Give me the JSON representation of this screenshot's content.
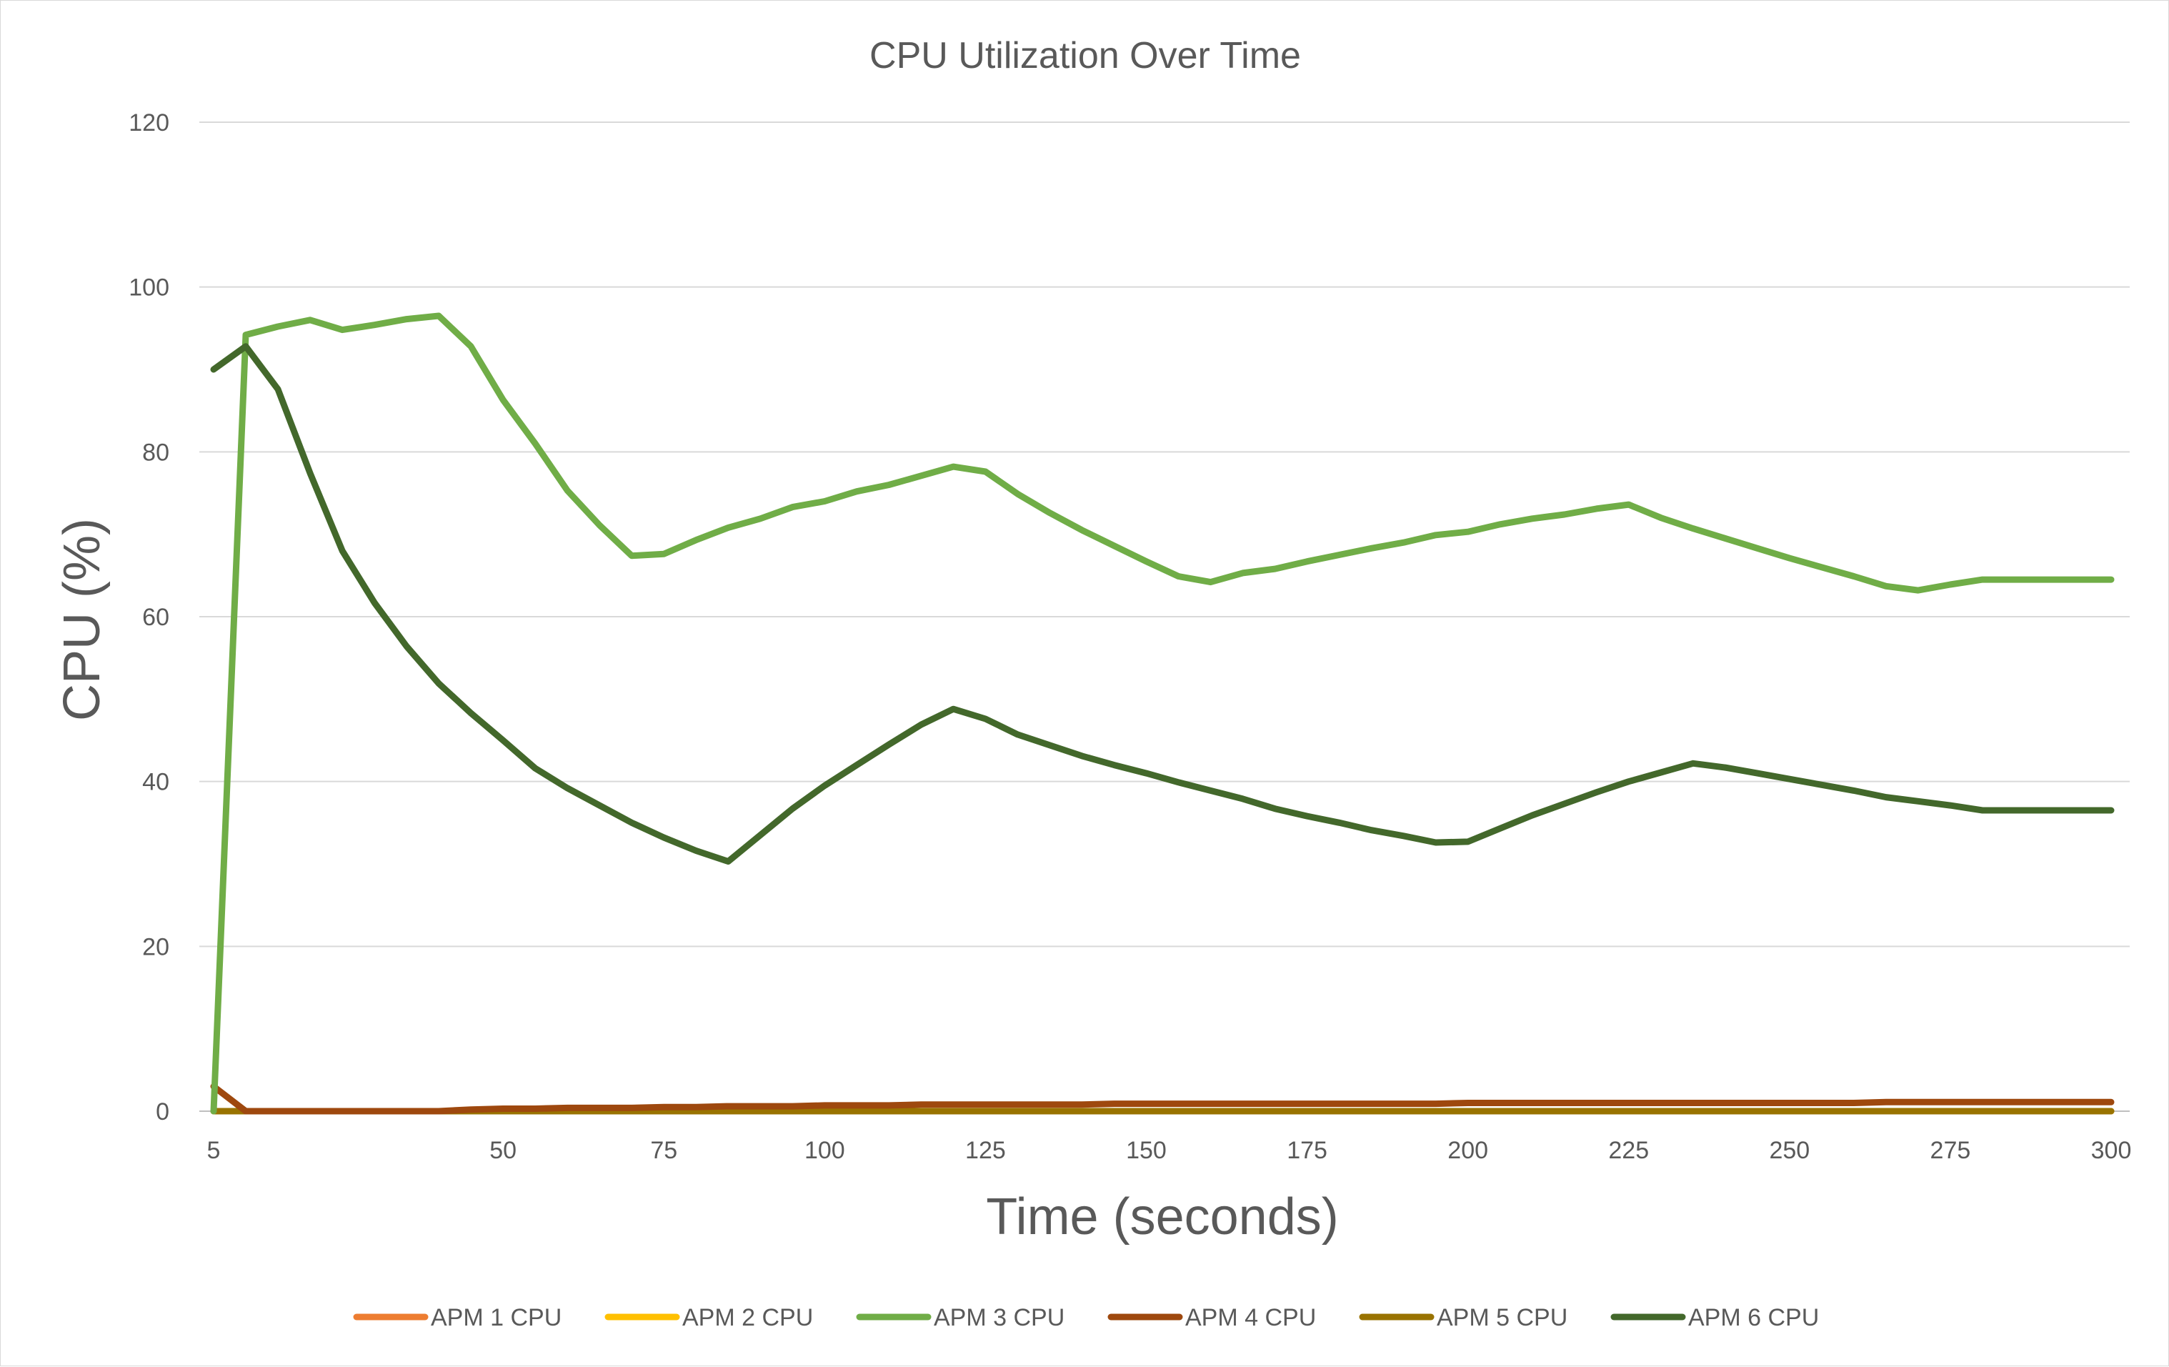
{
  "chart_data": {
    "type": "line",
    "title": "CPU Utilization Over Time",
    "xlabel": "Time (seconds)",
    "ylabel": "CPU (%)",
    "ylim": [
      0,
      120
    ],
    "yticks": [
      "0",
      "20",
      "40",
      "60",
      "80",
      "100",
      "120"
    ],
    "xlim": [
      5,
      300
    ],
    "xticks": [
      "5",
      "50",
      "75",
      "100",
      "125",
      "150",
      "175",
      "200",
      "225",
      "250",
      "275",
      "300"
    ],
    "grid": true,
    "legend_position": "bottom",
    "x": [
      5,
      10,
      15,
      20,
      25,
      30,
      35,
      40,
      45,
      50,
      55,
      60,
      65,
      70,
      75,
      80,
      85,
      90,
      95,
      100,
      105,
      110,
      115,
      120,
      125,
      130,
      135,
      140,
      145,
      150,
      155,
      160,
      165,
      170,
      175,
      180,
      185,
      190,
      195,
      200,
      205,
      210,
      215,
      220,
      225,
      230,
      235,
      240,
      245,
      250,
      255,
      260,
      265,
      270,
      275,
      280,
      285,
      290,
      295,
      300
    ],
    "series": [
      {
        "name": "APM 1 CPU",
        "color": "#ED7D31",
        "values": [
          0,
          0,
          0,
          0,
          0,
          0,
          0,
          0,
          0,
          0,
          0,
          0,
          0,
          0,
          0,
          0,
          0,
          0,
          0,
          0,
          0,
          0,
          0,
          0,
          0,
          0,
          0,
          0,
          0,
          0,
          0,
          0,
          0,
          0,
          0,
          0,
          0,
          0,
          0,
          0,
          0,
          0,
          0,
          0,
          0,
          0,
          0,
          0,
          0,
          0,
          0,
          0,
          0,
          0,
          0,
          0,
          0,
          0,
          0,
          0
        ]
      },
      {
        "name": "APM 2 CPU",
        "color": "#FFC000",
        "values": [
          0,
          0,
          0,
          0,
          0,
          0,
          0,
          0,
          0,
          0,
          0,
          0,
          0,
          0,
          0,
          0,
          0,
          0,
          0,
          0,
          0,
          0,
          0,
          0,
          0,
          0,
          0,
          0,
          0,
          0,
          0,
          0,
          0,
          0,
          0,
          0,
          0,
          0,
          0,
          0,
          0,
          0,
          0,
          0,
          0,
          0,
          0,
          0,
          0,
          0,
          0,
          0,
          0,
          0,
          0,
          0,
          0,
          0,
          0,
          0
        ]
      },
      {
        "name": "APM 3 CPU",
        "color": "#70AD47",
        "values": [
          0,
          94.2,
          95.2,
          96,
          94.8,
          95.4,
          96.1,
          96.5,
          92.8,
          86.3,
          81.0,
          75.3,
          71.1,
          67.4,
          67.6,
          69.3,
          70.8,
          71.9,
          73.3,
          74.0,
          75.2,
          76.0,
          77.1,
          78.2,
          77.6,
          74.9,
          72.6,
          70.5,
          68.6,
          66.7,
          64.9,
          64.2,
          65.3,
          65.8,
          66.7,
          67.5,
          68.3,
          69.0,
          69.9,
          70.3,
          71.2,
          71.9,
          72.4,
          73.1,
          73.6,
          72.0,
          70.7,
          69.5,
          68.3,
          67.1,
          66.0,
          64.9,
          63.7,
          63.2,
          63.9,
          64.5,
          64.5,
          64.5,
          64.5,
          64.5
        ]
      },
      {
        "name": "APM 4 CPU",
        "color": "#9E480E",
        "values": [
          3.0,
          0,
          0,
          0,
          0,
          0,
          0,
          0,
          0.2,
          0.3,
          0.3,
          0.4,
          0.4,
          0.4,
          0.5,
          0.5,
          0.6,
          0.6,
          0.6,
          0.7,
          0.7,
          0.7,
          0.8,
          0.8,
          0.8,
          0.8,
          0.8,
          0.8,
          0.9,
          0.9,
          0.9,
          0.9,
          0.9,
          0.9,
          0.9,
          0.9,
          0.9,
          0.9,
          0.9,
          1.0,
          1.0,
          1.0,
          1.0,
          1.0,
          1.0,
          1.0,
          1.0,
          1.0,
          1.0,
          1.0,
          1.0,
          1.0,
          1.1,
          1.1,
          1.1,
          1.1,
          1.1,
          1.1,
          1.1,
          1.1
        ]
      },
      {
        "name": "APM 5 CPU",
        "color": "#997300",
        "values": [
          0,
          0,
          0,
          0,
          0,
          0,
          0,
          0,
          0,
          0,
          0,
          0,
          0,
          0,
          0,
          0,
          0,
          0,
          0,
          0,
          0,
          0,
          0,
          0,
          0,
          0,
          0,
          0,
          0,
          0,
          0,
          0,
          0,
          0,
          0,
          0,
          0,
          0,
          0,
          0,
          0,
          0,
          0,
          0,
          0,
          0,
          0,
          0,
          0,
          0,
          0,
          0,
          0,
          0,
          0,
          0,
          0,
          0,
          0,
          0
        ]
      },
      {
        "name": "APM 6 CPU",
        "color": "#43682B",
        "values": [
          90.0,
          92.8,
          87.6,
          77.4,
          68.0,
          61.7,
          56.4,
          51.9,
          48.3,
          45.0,
          41.6,
          39.2,
          37.1,
          35.0,
          33.2,
          31.6,
          30.3,
          33.5,
          36.7,
          39.5,
          42.0,
          44.5,
          46.9,
          48.8,
          47.6,
          45.7,
          44.4,
          43.1,
          42.0,
          41.0,
          39.9,
          38.9,
          37.9,
          36.7,
          35.8,
          35.0,
          34.1,
          33.4,
          32.6,
          32.7,
          34.3,
          35.9,
          37.3,
          38.7,
          40.0,
          41.1,
          42.2,
          41.7,
          41.0,
          40.3,
          39.6,
          38.9,
          38.1,
          37.6,
          37.1,
          36.5,
          36.5,
          36.5,
          36.5,
          36.5
        ]
      }
    ]
  }
}
